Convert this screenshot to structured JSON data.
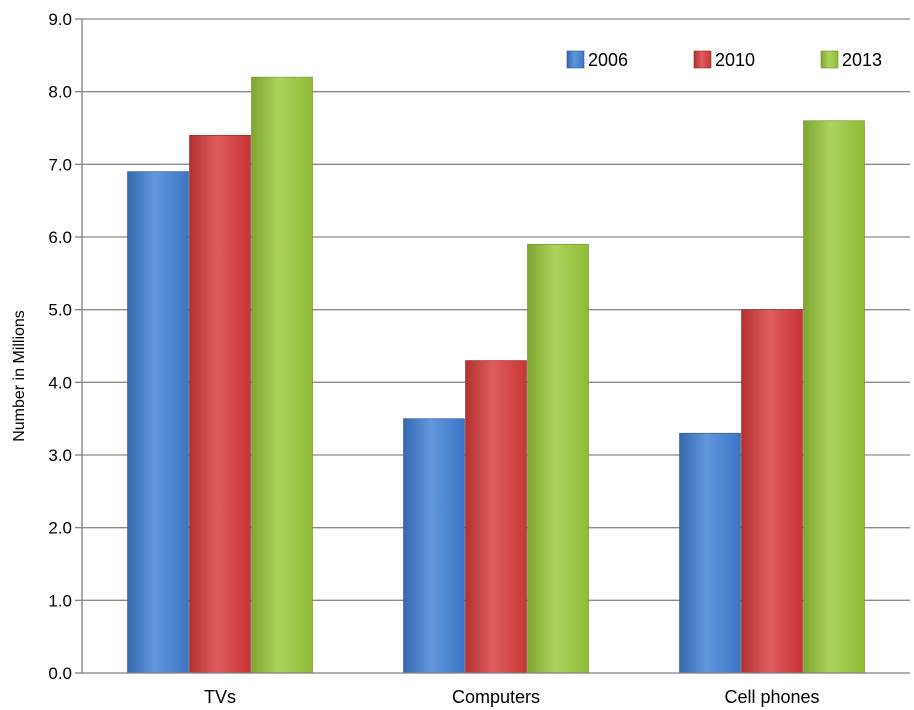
{
  "chart_data": {
    "type": "bar",
    "title": "",
    "xlabel": "",
    "ylabel": "Number in Millions",
    "ylim": [
      0,
      9
    ],
    "yticks": [
      "0.0",
      "1.0",
      "2.0",
      "3.0",
      "4.0",
      "5.0",
      "6.0",
      "7.0",
      "8.0",
      "9.0"
    ],
    "categories": [
      "TVs",
      "Computers",
      "Cell phones"
    ],
    "series": [
      {
        "name": "2006",
        "values": [
          6.9,
          3.5,
          3.3
        ],
        "color": "#3f7fd6"
      },
      {
        "name": "2010",
        "values": [
          7.4,
          4.3,
          5.0
        ],
        "color": "#d93a3a"
      },
      {
        "name": "2013",
        "values": [
          8.2,
          5.9,
          7.6
        ],
        "color": "#9acb3a"
      }
    ],
    "grid": true,
    "legend": "top-right"
  }
}
